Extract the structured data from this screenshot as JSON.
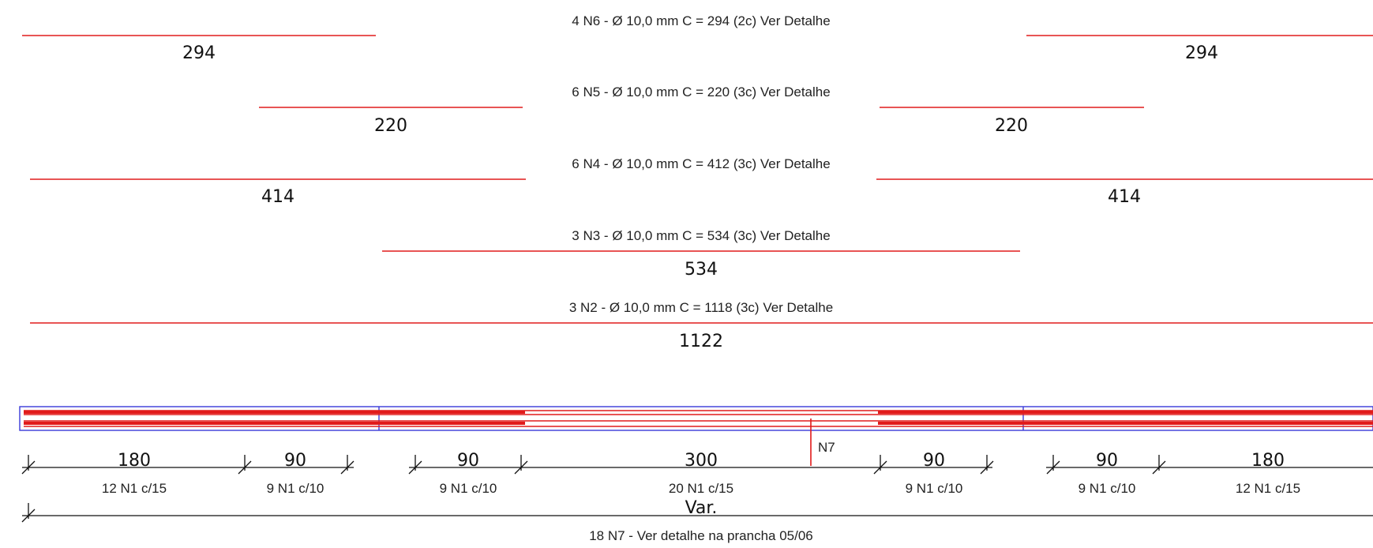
{
  "colors": {
    "bar": "#e11b1b",
    "beam_outline": "#3a3ad8",
    "dimension": "#111111"
  },
  "rebar_groups": [
    {
      "label": "4 N6 - Ø 10,0 mm C = 294 (2c) Ver Detalhe",
      "left_length": "294",
      "right_length": "294"
    },
    {
      "label": "6 N5 - Ø 10,0 mm C = 220 (3c) Ver Detalhe",
      "left_length": "220",
      "right_length": "220"
    },
    {
      "label": "6 N4 - Ø 10,0 mm C = 412 (3c) Ver Detalhe",
      "left_length": "414",
      "right_length": "414"
    },
    {
      "label": "3 N3 - Ø 10,0 mm C = 534 (3c) Ver Detalhe",
      "center_length": "534"
    },
    {
      "label": "3 N2 - Ø 10,0 mm C = 1118 (3c) Ver Detalhe",
      "center_length": "1122"
    }
  ],
  "beam": {
    "stirrup_tag": "N7",
    "spans": [
      {
        "length": "180",
        "stirrups": "12 N1 c/15"
      },
      {
        "length": "90",
        "stirrups": "9 N1 c/10"
      },
      {
        "length": "90",
        "stirrups": "9 N1 c/10"
      },
      {
        "length": "300",
        "stirrups": "20 N1 c/15"
      },
      {
        "length": "90",
        "stirrups": "9 N1 c/10"
      },
      {
        "length": "90",
        "stirrups": "9 N1 c/10"
      },
      {
        "length": "180",
        "stirrups": "12 N1 c/15"
      }
    ],
    "total_label": "Var.",
    "total_note": "18 N7 - Ver detalhe na prancha 05/06"
  }
}
